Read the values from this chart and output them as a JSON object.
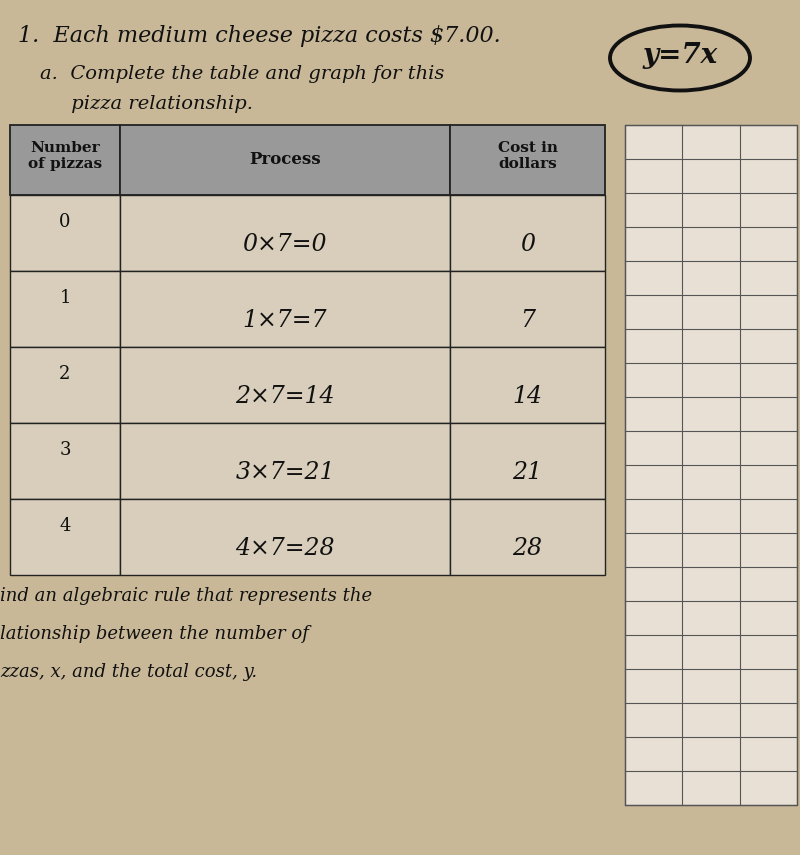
{
  "title": "1.  Each medium cheese pizza costs $7.00.",
  "sub1": "a.  Complete the table and graph for this",
  "sub2": "     pizza relationship.",
  "equation": "y=7x",
  "col0": "Number\nof pizzas",
  "col1": "Process",
  "col2": "Cost in\ndollars",
  "nums": [
    "0",
    "1",
    "2",
    "3",
    "4"
  ],
  "processes": [
    "0×7=0",
    "1×7=7",
    "2×7=14",
    "3×7=21",
    "4×7=28"
  ],
  "costs": [
    "0",
    "7",
    "14",
    "21",
    "28"
  ],
  "foot1": "ind an algebraic rule that represents the",
  "foot2": "lationship between the number of",
  "foot3": "zzas, x, and the total cost, y.",
  "bg": "#c8b898",
  "hdr_bg": "#999999",
  "cell_bg": "#d8cebb",
  "grid_bg": "#e8e0d4"
}
